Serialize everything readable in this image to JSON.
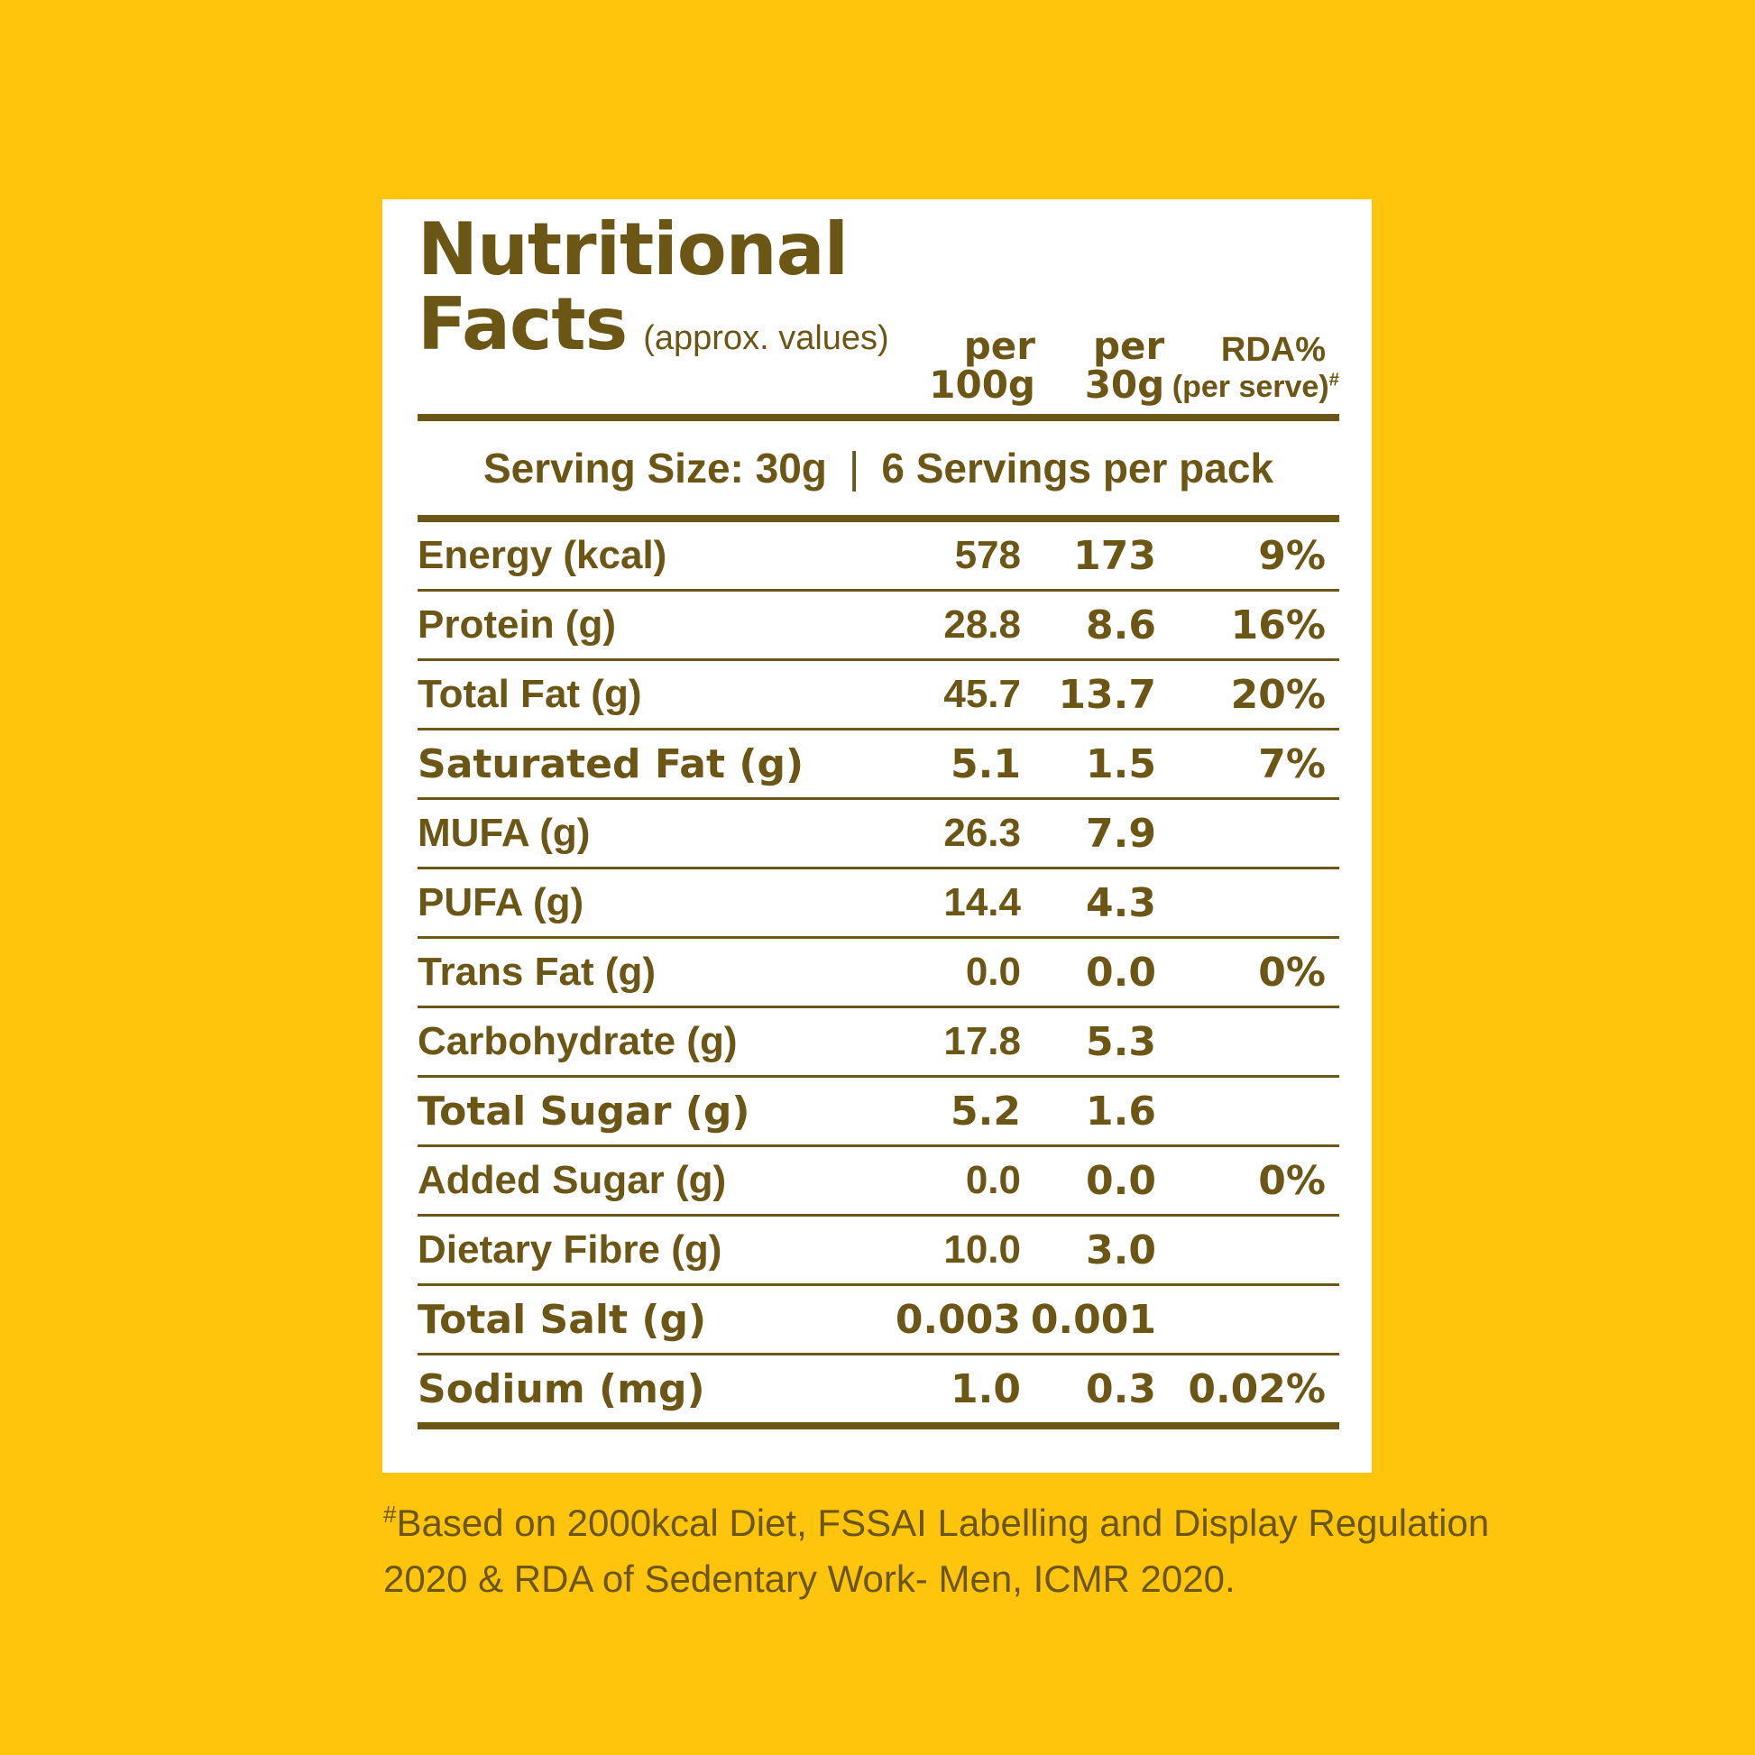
{
  "theme": {
    "page_background": "#FFC50D",
    "card_background": "#FFFFFF",
    "ink": "#6B5616"
  },
  "header": {
    "title_line1": "Nutritional",
    "title_line2": "Facts",
    "approx_note": "(approx. values)",
    "columns": [
      {
        "line1": "per",
        "line2": "100g"
      },
      {
        "line1": "per",
        "line2": "30g"
      },
      {
        "line1": "RDA%",
        "line2": "(per serve)",
        "marker": "#"
      }
    ]
  },
  "serving": {
    "part1": "Serving Size: 30g",
    "separator": "|",
    "part2": "6 Servings per pack"
  },
  "table": {
    "rows": [
      {
        "label": "Energy (kcal)",
        "per_100g": "578",
        "per_30g": "173",
        "rda": "9%",
        "emphasis": false
      },
      {
        "label": "Protein (g)",
        "per_100g": "28.8",
        "per_30g": "8.6",
        "rda": "16%",
        "emphasis": false
      },
      {
        "label": "Total Fat (g)",
        "per_100g": "45.7",
        "per_30g": "13.7",
        "rda": "20%",
        "emphasis": false
      },
      {
        "label": "Saturated Fat (g)",
        "per_100g": "5.1",
        "per_30g": "1.5",
        "rda": "7%",
        "emphasis": true
      },
      {
        "label": "MUFA (g)",
        "per_100g": "26.3",
        "per_30g": "7.9",
        "rda": "",
        "emphasis": false
      },
      {
        "label": "PUFA (g)",
        "per_100g": "14.4",
        "per_30g": "4.3",
        "rda": "",
        "emphasis": false
      },
      {
        "label": "Trans Fat (g)",
        "per_100g": "0.0",
        "per_30g": "0.0",
        "rda": "0%",
        "emphasis": false
      },
      {
        "label": "Carbohydrate (g)",
        "per_100g": "17.8",
        "per_30g": "5.3",
        "rda": "",
        "emphasis": false
      },
      {
        "label": "Total Sugar (g)",
        "per_100g": "5.2",
        "per_30g": "1.6",
        "rda": "",
        "emphasis": true
      },
      {
        "label": "Added Sugar (g)",
        "per_100g": "0.0",
        "per_30g": "0.0",
        "rda": "0%",
        "emphasis": false
      },
      {
        "label": "Dietary Fibre (g)",
        "per_100g": "10.0",
        "per_30g": "3.0",
        "rda": "",
        "emphasis": false
      },
      {
        "label": "Total Salt (g)",
        "per_100g": "0.003",
        "per_30g": "0.001",
        "rda": "",
        "emphasis": true
      },
      {
        "label": "Sodium (mg)",
        "per_100g": "1.0",
        "per_30g": "0.3",
        "rda": "0.02%",
        "emphasis": true
      }
    ]
  },
  "footnote": {
    "marker": "#",
    "line1": "Based on 2000kcal Diet, FSSAI Labelling and Display Regulation",
    "line2": "2020 & RDA of Sedentary Work- Men, ICMR 2020."
  }
}
